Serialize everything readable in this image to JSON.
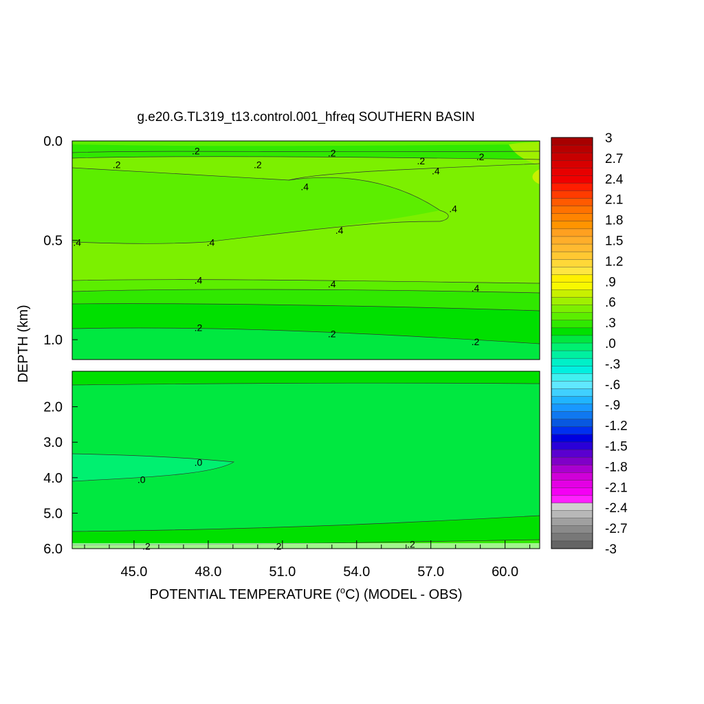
{
  "chart_data": {
    "type": "contour",
    "title": "g.e20.G.TL319_t13.control.001_hfreq SOUTHERN BASIN",
    "xlabel_prefix": "POTENTIAL TEMPERATURE (",
    "xlabel_unit_sup": "o",
    "xlabel_suffix": "C) (MODEL - OBS)",
    "ylabel": "DEPTH (km)",
    "x_ticks": [
      "45.0",
      "48.0",
      "51.0",
      "54.0",
      "57.0",
      "60.0"
    ],
    "x_tick_values": [
      45,
      48,
      51,
      54,
      57,
      60
    ],
    "xlim": [
      42.5,
      61.4
    ],
    "upper_panel": {
      "ylim": [
        0.0,
        1.1
      ],
      "y_ticks": [
        "0.0",
        "0.5",
        "1.0"
      ],
      "y_tick_values": [
        0.0,
        0.5,
        1.0
      ]
    },
    "lower_panel": {
      "ylim": [
        1.0,
        6.0
      ],
      "y_ticks": [
        "2.0",
        "3.0",
        "4.0",
        "5.0",
        "6.0"
      ],
      "y_tick_values": [
        2.0,
        3.0,
        4.0,
        5.0,
        6.0
      ]
    },
    "contour_labels": [
      {
        "text": ".2",
        "x": 47.5,
        "y": 0.05,
        "panel": "upper"
      },
      {
        "text": ".2",
        "x": 44.3,
        "y": 0.12,
        "panel": "upper"
      },
      {
        "text": ".2",
        "x": 50.0,
        "y": 0.12,
        "panel": "upper"
      },
      {
        "text": ".2",
        "x": 53.0,
        "y": 0.06,
        "panel": "upper"
      },
      {
        "text": ".2",
        "x": 56.6,
        "y": 0.1,
        "panel": "upper"
      },
      {
        "text": ".2",
        "x": 59.0,
        "y": 0.08,
        "panel": "upper"
      },
      {
        "text": ".4",
        "x": 57.2,
        "y": 0.15,
        "panel": "upper"
      },
      {
        "text": ".4",
        "x": 51.9,
        "y": 0.23,
        "panel": "upper"
      },
      {
        "text": ".4",
        "x": 57.9,
        "y": 0.34,
        "panel": "upper"
      },
      {
        "text": ".4",
        "x": 42.7,
        "y": 0.51,
        "panel": "upper"
      },
      {
        "text": ".4",
        "x": 48.1,
        "y": 0.51,
        "panel": "upper"
      },
      {
        "text": ".4",
        "x": 53.3,
        "y": 0.45,
        "panel": "upper"
      },
      {
        "text": ".4",
        "x": 47.6,
        "y": 0.7,
        "panel": "upper"
      },
      {
        "text": ".4",
        "x": 53.0,
        "y": 0.72,
        "panel": "upper"
      },
      {
        "text": ".4",
        "x": 58.8,
        "y": 0.74,
        "panel": "upper"
      },
      {
        "text": ".2",
        "x": 47.6,
        "y": 0.94,
        "panel": "upper"
      },
      {
        "text": ".2",
        "x": 53.0,
        "y": 0.97,
        "panel": "upper"
      },
      {
        "text": ".2",
        "x": 58.8,
        "y": 1.01,
        "panel": "upper"
      },
      {
        "text": ".0",
        "x": 47.6,
        "y": 3.57,
        "panel": "lower"
      },
      {
        "text": ".0",
        "x": 45.3,
        "y": 4.05,
        "panel": "lower"
      },
      {
        "text": ".2",
        "x": 45.5,
        "y": 5.93,
        "panel": "lower"
      },
      {
        "text": ".2",
        "x": 50.8,
        "y": 5.93,
        "panel": "lower"
      },
      {
        "text": ".2",
        "x": 56.2,
        "y": 5.87,
        "panel": "lower"
      }
    ],
    "colorbar": {
      "min": -3.0,
      "max": 3.0,
      "labels": [
        "3",
        "2.7",
        "2.4",
        "2.1",
        "1.8",
        "1.5",
        "1.2",
        ".9",
        ".6",
        ".3",
        ".0",
        "-.3",
        "-.6",
        "-.9",
        "-1.2",
        "-1.5",
        "-1.8",
        "-2.1",
        "-2.4",
        "-2.7",
        "-3"
      ],
      "label_values": [
        3.0,
        2.7,
        2.4,
        2.1,
        1.8,
        1.5,
        1.2,
        0.9,
        0.6,
        0.3,
        0.0,
        -0.3,
        -0.6,
        -0.9,
        -1.2,
        -1.5,
        -1.8,
        -2.1,
        -2.4,
        -2.7,
        -3.0
      ],
      "colors": [
        "#a80000",
        "#b80000",
        "#c80000",
        "#d80000",
        "#e80000",
        "#f00000",
        "#ff1e00",
        "#ff3c00",
        "#ff5a00",
        "#ff7200",
        "#ff8400",
        "#ff9400",
        "#ffa020",
        "#ffae2a",
        "#ffba30",
        "#ffc832",
        "#ffd838",
        "#ffe640",
        "#fff000",
        "#f8f800",
        "#c8f000",
        "#a0f000",
        "#7cf000",
        "#5cee00",
        "#30e800",
        "#00e000",
        "#00e840",
        "#00f070",
        "#00f0a0",
        "#00f0c8",
        "#00f0e0",
        "#40f0f0",
        "#60e8ff",
        "#40d0ff",
        "#20b4ff",
        "#1898ff",
        "#1078f0",
        "#0858e0",
        "#0030f0",
        "#0000e0",
        "#2a00d8",
        "#5a00d0",
        "#8000c8",
        "#aa00d0",
        "#d000d8",
        "#e400e4",
        "#f400f4",
        "#ff20ff",
        "#d0d0d0",
        "#b8b8b8",
        "#a0a0a0",
        "#8a8a8a",
        "#787878",
        "#646464"
      ]
    }
  }
}
